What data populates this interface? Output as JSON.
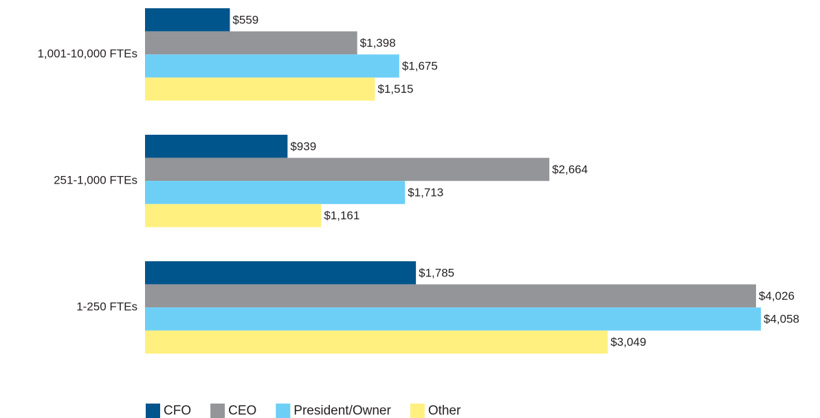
{
  "chart_data": {
    "type": "hbar",
    "categories": [
      "1,001-10,000 FTEs",
      "251-1,000 FTEs",
      "1-250 FTEs"
    ],
    "series": [
      {
        "name": "CFO",
        "color": "#00558c",
        "values": [
          559,
          939,
          1785
        ],
        "value_labels": [
          "$559",
          "$939",
          "$1,785"
        ]
      },
      {
        "name": "CEO",
        "color": "#939598",
        "values": [
          1398,
          2664,
          4026
        ],
        "value_labels": [
          "$1,398",
          "$2,664",
          "$4,026"
        ]
      },
      {
        "name": "President/Owner",
        "color": "#6dcff6",
        "values": [
          1675,
          1713,
          4058
        ],
        "value_labels": [
          "$1,675",
          "$1,713",
          "$4,058"
        ]
      },
      {
        "name": "Other",
        "color": "#fff080",
        "values": [
          1515,
          1161,
          3049
        ],
        "value_labels": [
          "$1,515",
          "$1,161",
          "$3,049"
        ]
      }
    ],
    "legend": "bottom"
  }
}
